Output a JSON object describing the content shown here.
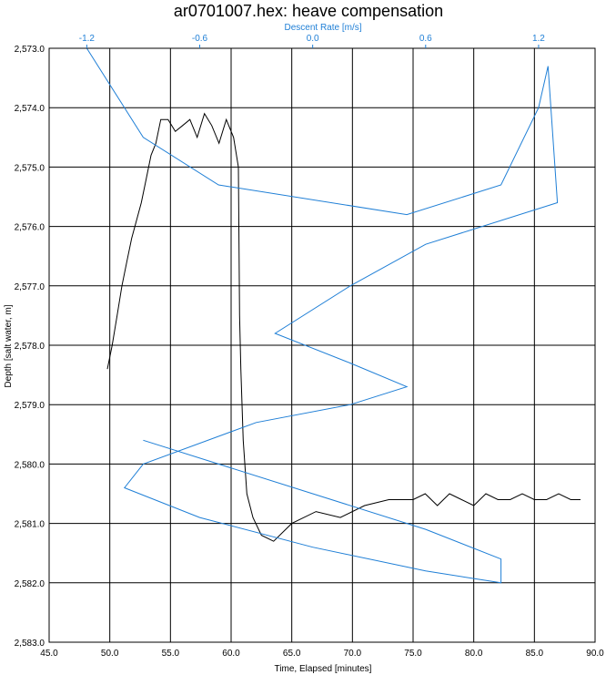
{
  "chart_data": {
    "type": "line",
    "title": "ar0701007.hex: heave compensation",
    "xlabel": "Time, Elapsed [minutes]",
    "ylabel": "Depth [salt water, m]",
    "x2label": "Descent Rate [m/s]",
    "xlim": [
      45.0,
      90.0
    ],
    "ylim": [
      2573.0,
      2583.0
    ],
    "x2lim": [
      -1.4,
      1.5
    ],
    "y_inverted": true,
    "grid": true,
    "x_ticks": [
      "45.0",
      "50.0",
      "55.0",
      "60.0",
      "65.0",
      "70.0",
      "75.0",
      "80.0",
      "85.0",
      "90.0"
    ],
    "y_ticks": [
      "2,573.0",
      "2,574.0",
      "2,575.0",
      "2,576.0",
      "2,577.0",
      "2,578.0",
      "2,579.0",
      "2,580.0",
      "2,581.0",
      "2,582.0",
      "2,583.0"
    ],
    "x2_ticks": [
      "-1.2",
      "-0.6",
      "0.0",
      "0.6",
      "1.2"
    ],
    "series": [
      {
        "color": "#000000",
        "axis": "time",
        "points": [
          [
            49.8,
            2578.4
          ],
          [
            50.2,
            2578.0
          ],
          [
            50.6,
            2577.5
          ],
          [
            51.0,
            2577.0
          ],
          [
            51.4,
            2576.6
          ],
          [
            51.8,
            2576.2
          ],
          [
            52.2,
            2575.9
          ],
          [
            52.6,
            2575.6
          ],
          [
            53.0,
            2575.2
          ],
          [
            53.4,
            2574.8
          ],
          [
            53.8,
            2574.6
          ],
          [
            54.2,
            2574.2
          ],
          [
            54.8,
            2574.2
          ],
          [
            55.4,
            2574.4
          ],
          [
            56.0,
            2574.3
          ],
          [
            56.6,
            2574.2
          ],
          [
            57.2,
            2574.5
          ],
          [
            57.8,
            2574.1
          ],
          [
            58.4,
            2574.3
          ],
          [
            59.0,
            2574.6
          ],
          [
            59.6,
            2574.2
          ],
          [
            60.2,
            2574.5
          ],
          [
            60.6,
            2575.0
          ],
          [
            60.7,
            2577.5
          ],
          [
            60.8,
            2578.4
          ],
          [
            61.0,
            2579.6
          ],
          [
            61.3,
            2580.5
          ],
          [
            61.8,
            2580.9
          ],
          [
            62.5,
            2581.2
          ],
          [
            63.5,
            2581.3
          ],
          [
            65.0,
            2581.0
          ],
          [
            67.0,
            2580.8
          ],
          [
            69.0,
            2580.9
          ],
          [
            71.0,
            2580.7
          ],
          [
            73.0,
            2580.6
          ],
          [
            75.0,
            2580.6
          ],
          [
            76.0,
            2580.5
          ],
          [
            77.0,
            2580.7
          ],
          [
            78.0,
            2580.5
          ],
          [
            79.0,
            2580.6
          ],
          [
            80.0,
            2580.7
          ],
          [
            81.0,
            2580.5
          ],
          [
            82.0,
            2580.6
          ],
          [
            83.0,
            2580.6
          ],
          [
            84.0,
            2580.5
          ],
          [
            85.0,
            2580.6
          ],
          [
            86.0,
            2580.6
          ],
          [
            87.0,
            2580.5
          ],
          [
            88.0,
            2580.6
          ],
          [
            88.8,
            2580.6
          ]
        ]
      },
      {
        "color": "#1f7fd6",
        "axis": "descent-rate",
        "points": [
          [
            -1.2,
            2573.0
          ],
          [
            -0.9,
            2574.5
          ],
          [
            -0.5,
            2575.3
          ],
          [
            0.5,
            2575.8
          ],
          [
            1.0,
            2575.3
          ],
          [
            1.2,
            2574.0
          ],
          [
            1.25,
            2573.3
          ],
          [
            1.3,
            2575.6
          ],
          [
            0.6,
            2576.3
          ],
          [
            0.2,
            2577.0
          ],
          [
            -0.2,
            2577.8
          ],
          [
            0.2,
            2578.3
          ],
          [
            0.5,
            2578.7
          ],
          [
            0.2,
            2579.0
          ],
          [
            -0.3,
            2579.3
          ],
          [
            -0.9,
            2580.0
          ],
          [
            -1.0,
            2580.4
          ],
          [
            -0.6,
            2580.9
          ],
          [
            0.0,
            2581.4
          ],
          [
            0.6,
            2581.8
          ],
          [
            1.0,
            2582.0
          ],
          [
            1.0,
            2581.6
          ],
          [
            0.6,
            2581.1
          ],
          [
            0.0,
            2580.5
          ],
          [
            -0.5,
            2580.0
          ],
          [
            -0.9,
            2579.6
          ]
        ]
      }
    ]
  }
}
